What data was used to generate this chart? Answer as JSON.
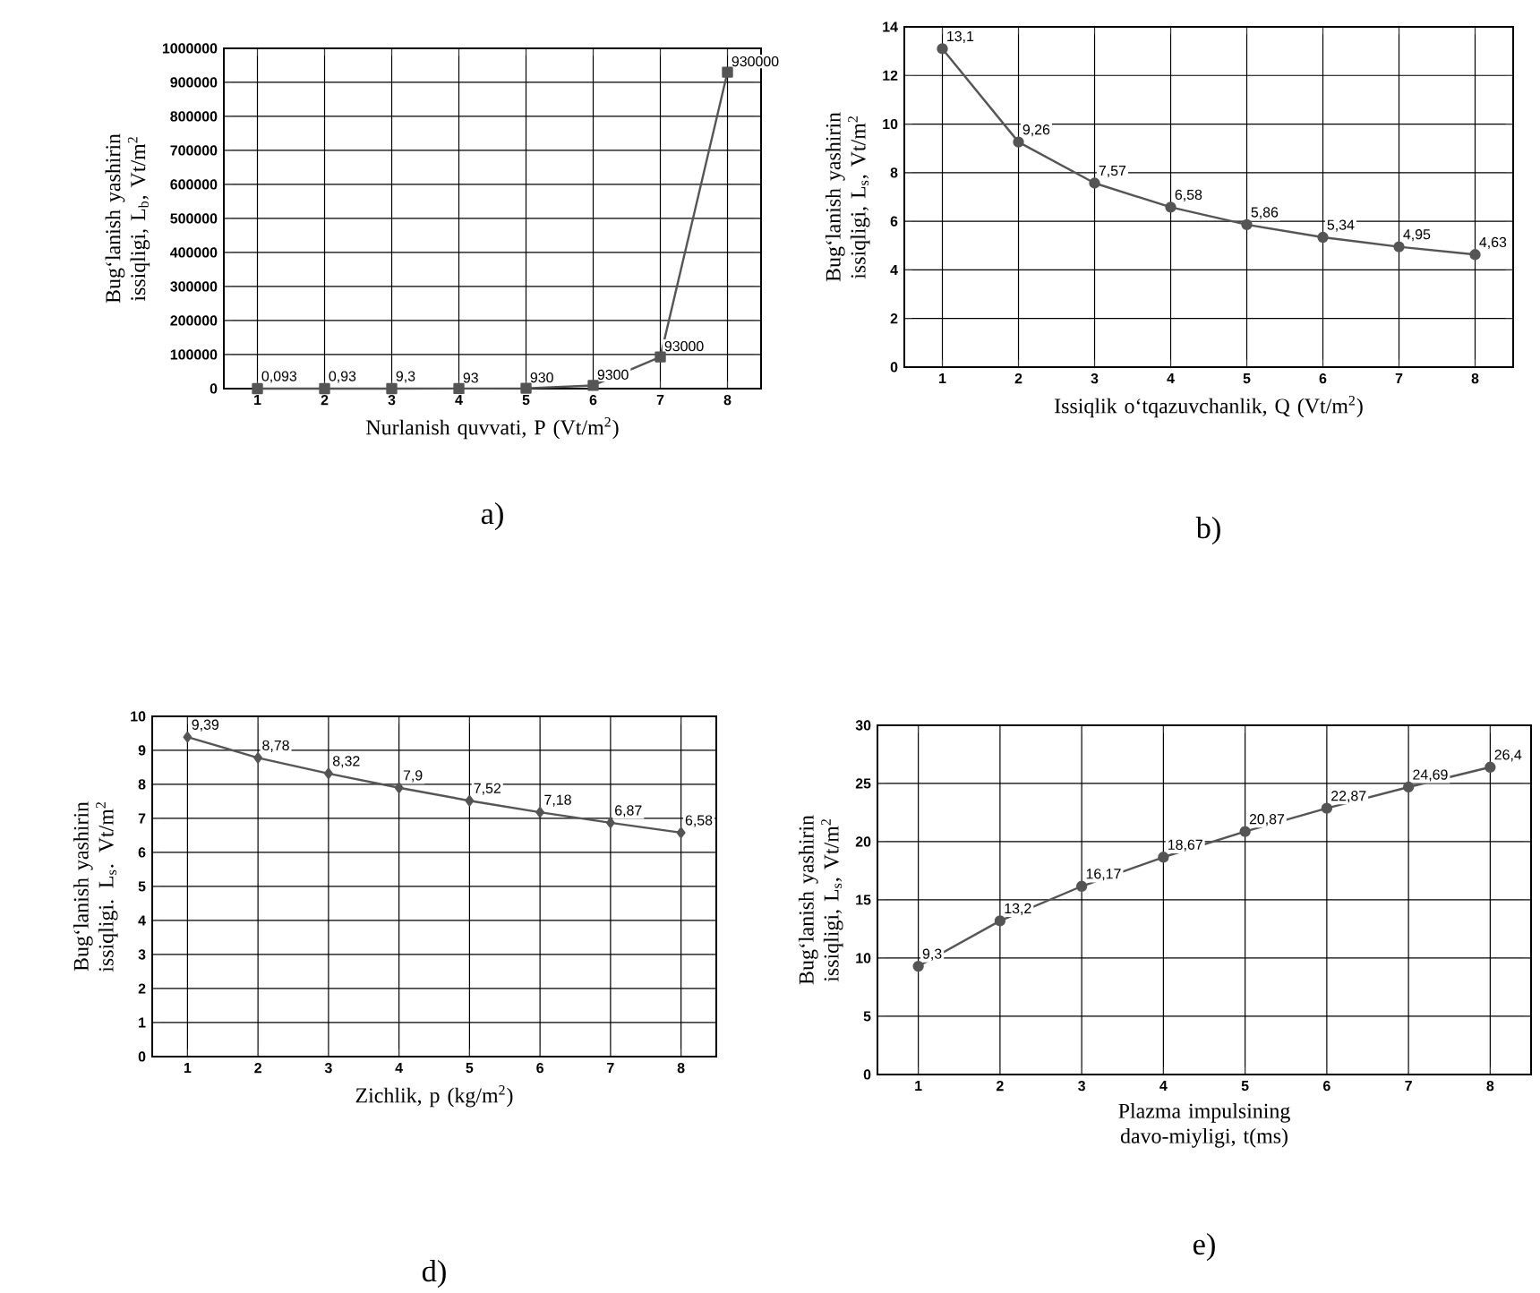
{
  "chart_data": [
    {
      "type": "line",
      "title": "a)",
      "xlabel": "Nurlanish quvvati, P (Vt/m$^{2}$)",
      "ylabel": "Bug‘lanish yashirin issiqligi, L$_{b}$, Vt/m$^{2}$",
      "x": [
        1,
        2,
        3,
        4,
        5,
        6,
        7,
        8
      ],
      "xlim": [
        0.5,
        8.5
      ],
      "xticks": [
        1,
        2,
        3,
        4,
        5,
        6,
        7,
        8
      ],
      "ylim": [
        0,
        1000000
      ],
      "yticks": [
        0,
        100000,
        200000,
        300000,
        400000,
        500000,
        600000,
        700000,
        800000,
        900000,
        1000000
      ],
      "grid": true,
      "marker": "square",
      "series": [
        {
          "color": "#555555",
          "values": [
            0.093,
            0.93,
            9.3,
            93,
            930,
            9300,
            93000,
            930000
          ],
          "value_labels": [
            "0,093",
            "0,93",
            "9,3",
            "93",
            "930",
            "9300",
            "93000",
            "930000"
          ]
        }
      ]
    },
    {
      "type": "line",
      "title": "b)",
      "xlabel": "Issiqlik o‘tqazuvchanlik, Q (Vt/m$^{2}$)",
      "ylabel": "Bug‘lanish yashirin issiqligi, L$_{s}$, Vt/m$^{2}$",
      "x": [
        1,
        2,
        3,
        4,
        5,
        6,
        7,
        8
      ],
      "xlim": [
        0.5,
        8.5
      ],
      "xticks": [
        1,
        2,
        3,
        4,
        5,
        6,
        7,
        8
      ],
      "ylim": [
        0,
        14
      ],
      "yticks": [
        0,
        2,
        4,
        6,
        8,
        10,
        12,
        14
      ],
      "grid": true,
      "marker": "circle",
      "series": [
        {
          "color": "#555555",
          "values": [
            13.1,
            9.26,
            7.57,
            6.58,
            5.86,
            5.34,
            4.95,
            4.63
          ],
          "value_labels": [
            "13,1",
            "9,26",
            "7,57",
            "6,58",
            "5,86",
            "5,34",
            "4,95",
            "4,63"
          ]
        }
      ]
    },
    {
      "type": "line",
      "title": "d)",
      "xlabel": "Zichlik, p (kg/m$^{2}$)",
      "ylabel": "Bug‘lanish yashirin issiqligi. L$_{s}$. Vt/m$^{2}$",
      "x": [
        1,
        2,
        3,
        4,
        5,
        6,
        7,
        8
      ],
      "xlim": [
        0.5,
        8.5
      ],
      "xticks": [
        1,
        2,
        3,
        4,
        5,
        6,
        7,
        8
      ],
      "ylim": [
        0,
        10
      ],
      "yticks": [
        0,
        1,
        2,
        3,
        4,
        5,
        6,
        7,
        8,
        9,
        10
      ],
      "grid": true,
      "marker": "diamond",
      "series": [
        {
          "color": "#555555",
          "values": [
            9.39,
            8.78,
            8.32,
            7.9,
            7.52,
            7.18,
            6.87,
            6.58
          ],
          "value_labels": [
            "9,39",
            "8,78",
            "8,32",
            "7,9",
            "7,52",
            "7,18",
            "6,87",
            "6,58"
          ]
        }
      ]
    },
    {
      "type": "line",
      "title": "e)",
      "xlabel": "Plazma impulsining davo-miyligi, t(ms)",
      "ylabel": "Bug‘lanish yashirin issiqligi, L$_{s}$, Vt/m$^{2}$",
      "x": [
        1,
        2,
        3,
        4,
        5,
        6,
        7,
        8
      ],
      "xlim": [
        0.5,
        8.5
      ],
      "xticks": [
        1,
        2,
        3,
        4,
        5,
        6,
        7,
        8
      ],
      "ylim": [
        0,
        30
      ],
      "yticks": [
        0,
        5,
        10,
        15,
        20,
        25,
        30
      ],
      "grid": true,
      "marker": "circle",
      "series": [
        {
          "color": "#555555",
          "values": [
            9.3,
            13.2,
            16.17,
            18.67,
            20.87,
            22.87,
            24.69,
            26.4
          ],
          "value_labels": [
            "9,3",
            "13,2",
            "16,17",
            "18,67",
            "20,87",
            "22,87",
            "24,69",
            "26,4"
          ]
        }
      ]
    }
  ]
}
